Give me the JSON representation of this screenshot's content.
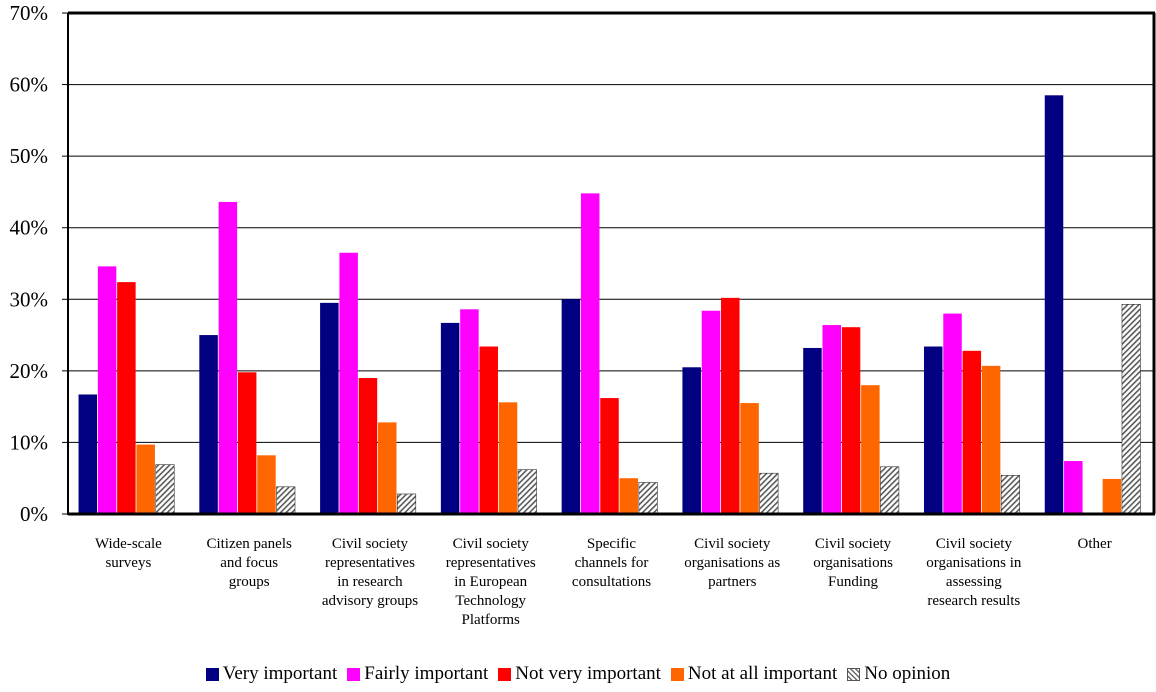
{
  "chart_data": {
    "type": "bar",
    "categories": [
      [
        "Wide-scale",
        "surveys"
      ],
      [
        "Citizen panels",
        "and focus",
        "groups"
      ],
      [
        "Civil society",
        "representatives",
        "in research",
        "advisory groups"
      ],
      [
        "Civil society",
        "representatives",
        "in European",
        "Technology",
        "Platforms"
      ],
      [
        "Specific",
        "channels for",
        "consultations"
      ],
      [
        "Civil society",
        "organisations as",
        "partners"
      ],
      [
        "Civil society",
        "organisations",
        "Funding"
      ],
      [
        "Civil society",
        "organisations in",
        "assessing",
        "research results"
      ],
      [
        "Other"
      ]
    ],
    "series": [
      {
        "name": "Very important",
        "color": "#000080",
        "values": [
          16.7,
          25.0,
          29.5,
          26.7,
          30.0,
          20.5,
          23.2,
          23.4,
          58.5
        ]
      },
      {
        "name": "Fairly important",
        "color": "#ff00ff",
        "values": [
          34.6,
          43.6,
          36.5,
          28.6,
          44.8,
          28.4,
          26.4,
          28.0,
          7.4
        ]
      },
      {
        "name": "Not very important",
        "color": "#ff0000",
        "values": [
          32.4,
          19.8,
          19.0,
          23.4,
          16.2,
          30.2,
          26.1,
          22.8,
          0
        ]
      },
      {
        "name": "Not at all important",
        "color": "#ff6600",
        "values": [
          9.7,
          8.2,
          12.8,
          15.6,
          5.0,
          15.5,
          18.0,
          20.7,
          4.9
        ]
      },
      {
        "name": "No opinion",
        "color": "hatch",
        "values": [
          6.9,
          3.8,
          2.8,
          6.2,
          4.4,
          5.7,
          6.6,
          5.4,
          29.3
        ]
      }
    ],
    "yticks": [
      "0%",
      "10%",
      "20%",
      "30%",
      "40%",
      "50%",
      "60%",
      "70%"
    ],
    "ylim": [
      0,
      70
    ],
    "grid": true,
    "legend_position": "bottom"
  }
}
